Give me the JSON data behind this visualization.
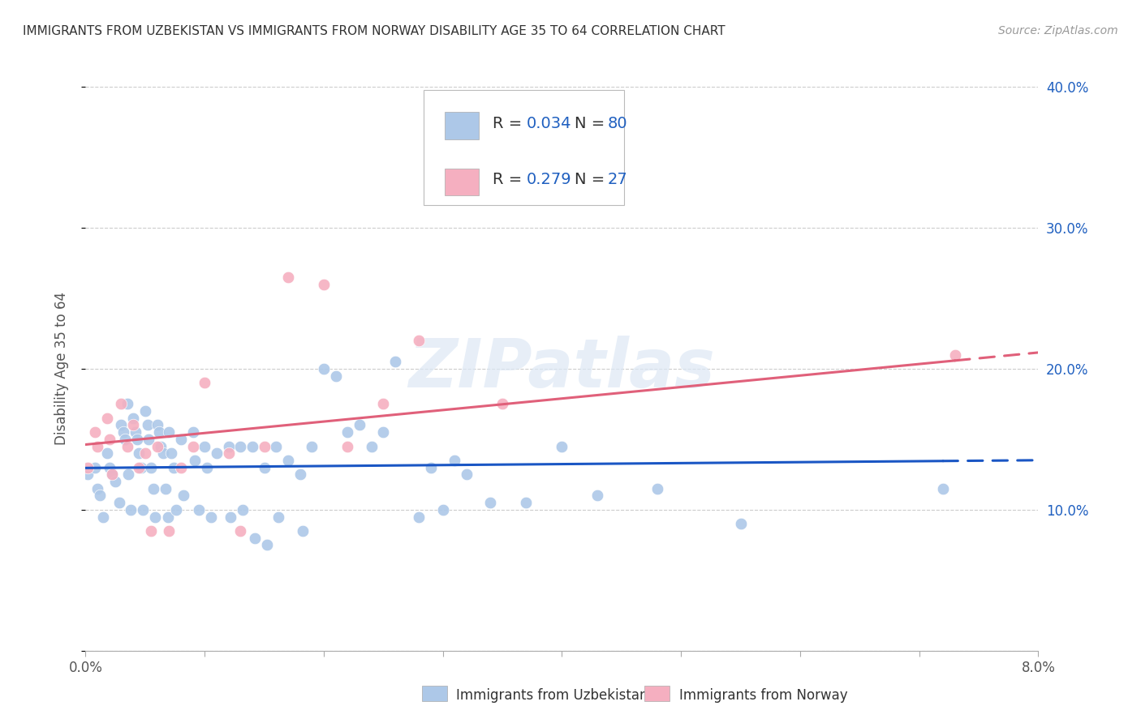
{
  "title": "IMMIGRANTS FROM UZBEKISTAN VS IMMIGRANTS FROM NORWAY DISABILITY AGE 35 TO 64 CORRELATION CHART",
  "source": "Source: ZipAtlas.com",
  "ylabel": "Disability Age 35 to 64",
  "xlabel_blue": "Immigrants from Uzbekistan",
  "xlabel_pink": "Immigrants from Norway",
  "r_blue": 0.034,
  "n_blue": 80,
  "r_pink": 0.279,
  "n_pink": 27,
  "x_min": 0.0,
  "x_max": 0.08,
  "y_min": 0.0,
  "y_max": 0.4,
  "x_ticks": [
    0.0,
    0.01,
    0.02,
    0.03,
    0.04,
    0.05,
    0.06,
    0.07,
    0.08
  ],
  "x_tick_labels_show": [
    0.0,
    0.08
  ],
  "y_ticks": [
    0.0,
    0.1,
    0.2,
    0.3,
    0.4
  ],
  "y_tick_labels": [
    "",
    "10.0%",
    "20.0%",
    "30.0%",
    "40.0%"
  ],
  "color_blue": "#adc8e8",
  "color_pink": "#f5afc0",
  "line_color_blue": "#1a56c4",
  "line_color_pink": "#e0607a",
  "background_color": "#ffffff",
  "watermark": "ZIPatlas",
  "blue_points_x": [
    0.0002,
    0.0008,
    0.001,
    0.0012,
    0.0015,
    0.0018,
    0.002,
    0.0022,
    0.0025,
    0.0028,
    0.003,
    0.0032,
    0.0033,
    0.0035,
    0.0036,
    0.0038,
    0.004,
    0.0042,
    0.0043,
    0.0045,
    0.0047,
    0.0048,
    0.005,
    0.0052,
    0.0053,
    0.0055,
    0.0057,
    0.0058,
    0.006,
    0.0062,
    0.0063,
    0.0065,
    0.0067,
    0.0069,
    0.007,
    0.0072,
    0.0074,
    0.0076,
    0.008,
    0.0082,
    0.009,
    0.0092,
    0.0095,
    0.01,
    0.0102,
    0.0105,
    0.011,
    0.012,
    0.0122,
    0.013,
    0.0132,
    0.014,
    0.0142,
    0.015,
    0.0152,
    0.016,
    0.0162,
    0.017,
    0.018,
    0.0182,
    0.019,
    0.02,
    0.021,
    0.022,
    0.023,
    0.024,
    0.025,
    0.026,
    0.028,
    0.029,
    0.03,
    0.031,
    0.032,
    0.034,
    0.037,
    0.04,
    0.043,
    0.048,
    0.055,
    0.072
  ],
  "blue_points_y": [
    0.125,
    0.13,
    0.115,
    0.11,
    0.095,
    0.14,
    0.13,
    0.125,
    0.12,
    0.105,
    0.16,
    0.155,
    0.15,
    0.175,
    0.125,
    0.1,
    0.165,
    0.155,
    0.15,
    0.14,
    0.13,
    0.1,
    0.17,
    0.16,
    0.15,
    0.13,
    0.115,
    0.095,
    0.16,
    0.155,
    0.145,
    0.14,
    0.115,
    0.095,
    0.155,
    0.14,
    0.13,
    0.1,
    0.15,
    0.11,
    0.155,
    0.135,
    0.1,
    0.145,
    0.13,
    0.095,
    0.14,
    0.145,
    0.095,
    0.145,
    0.1,
    0.145,
    0.08,
    0.13,
    0.075,
    0.145,
    0.095,
    0.135,
    0.125,
    0.085,
    0.145,
    0.2,
    0.195,
    0.155,
    0.16,
    0.145,
    0.155,
    0.205,
    0.095,
    0.13,
    0.1,
    0.135,
    0.125,
    0.105,
    0.105,
    0.145,
    0.11,
    0.115,
    0.09,
    0.115
  ],
  "pink_points_x": [
    0.0002,
    0.0008,
    0.001,
    0.0018,
    0.002,
    0.0022,
    0.003,
    0.0035,
    0.004,
    0.0045,
    0.005,
    0.0055,
    0.006,
    0.007,
    0.008,
    0.009,
    0.01,
    0.012,
    0.013,
    0.015,
    0.017,
    0.02,
    0.022,
    0.025,
    0.028,
    0.035,
    0.073
  ],
  "pink_points_y": [
    0.13,
    0.155,
    0.145,
    0.165,
    0.15,
    0.125,
    0.175,
    0.145,
    0.16,
    0.13,
    0.14,
    0.085,
    0.145,
    0.085,
    0.13,
    0.145,
    0.19,
    0.14,
    0.085,
    0.145,
    0.265,
    0.26,
    0.145,
    0.175,
    0.22,
    0.175,
    0.21
  ]
}
